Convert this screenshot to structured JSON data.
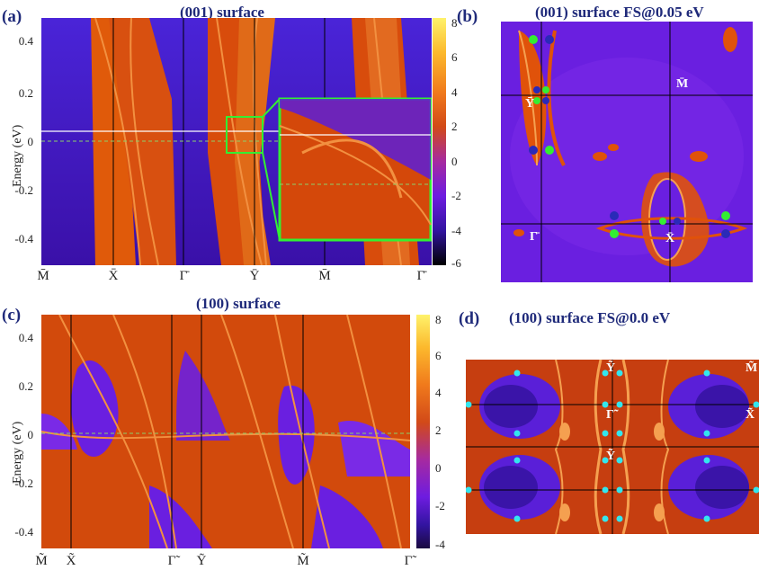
{
  "panel_a": {
    "label": "(a)",
    "title": "(001) surface",
    "ylabel": "Energy (eV)",
    "yticks": [
      "0.4",
      "0.2",
      "0",
      "-0.2",
      "-0.4"
    ],
    "xticks": [
      "M̄",
      "X̄",
      "Γ̄",
      "Ȳ",
      "M̄",
      "Γ̄"
    ],
    "colorbar_ticks": [
      "8",
      "6",
      "4",
      "2",
      "0",
      "-2",
      "-4",
      "-6"
    ]
  },
  "panel_b": {
    "label": "(b)",
    "title": "(001) surface FS@0.05 eV",
    "points": [
      "M̄",
      "Ȳ",
      "Γ̄",
      "X̄"
    ]
  },
  "panel_c": {
    "label": "(c)",
    "title": "(100) surface",
    "ylabel": "Energy (eV)",
    "yticks": [
      "0.4",
      "0.2",
      "0",
      "-0.2",
      "-0.4"
    ],
    "xticks": [
      "M̃",
      "X̃",
      "Γ̃",
      "Ỹ",
      "M̃",
      "Γ̃"
    ],
    "colorbar_ticks": [
      "8",
      "6",
      "4",
      "2",
      "0",
      "-2",
      "-4"
    ]
  },
  "panel_d": {
    "label": "(d)",
    "title": "(100) surface FS@0.0 eV",
    "points": [
      "Ỹ",
      "M̃",
      "Γ̃",
      "X̃",
      "Ỹ"
    ]
  },
  "colors": {
    "background": "#5a1fd8",
    "band": "#e0520a",
    "accent": "#33ee33",
    "title": "#1f2a7a",
    "point_cyan": "#33e6ee",
    "point_blue": "#2a2ab8"
  },
  "chart_data": [
    {
      "type": "heatmap",
      "title": "(001) surface",
      "ylabel": "Energy (eV)",
      "ylim": [
        -0.52,
        0.5
      ],
      "x_path": [
        "M̄",
        "X̄",
        "Γ̄",
        "Ȳ",
        "M̄",
        "Γ̄"
      ],
      "colorbar_range": [
        -6,
        8
      ]
    },
    {
      "type": "heatmap",
      "title": "(001) surface FS@0.05 eV",
      "high_symmetry_points": [
        "M̄",
        "Ȳ",
        "Γ̄",
        "X̄"
      ]
    },
    {
      "type": "heatmap",
      "title": "(100) surface",
      "ylabel": "Energy (eV)",
      "ylim": [
        -0.47,
        0.5
      ],
      "x_path": [
        "M̃",
        "X̃",
        "Γ̃",
        "Ỹ",
        "M̃",
        "Γ̃"
      ],
      "colorbar_range": [
        -4,
        8
      ]
    },
    {
      "type": "heatmap",
      "title": "(100) surface FS@0.0 eV",
      "high_symmetry_points": [
        "Ỹ",
        "M̃",
        "Γ̃",
        "X̃",
        "Ỹ"
      ]
    }
  ]
}
